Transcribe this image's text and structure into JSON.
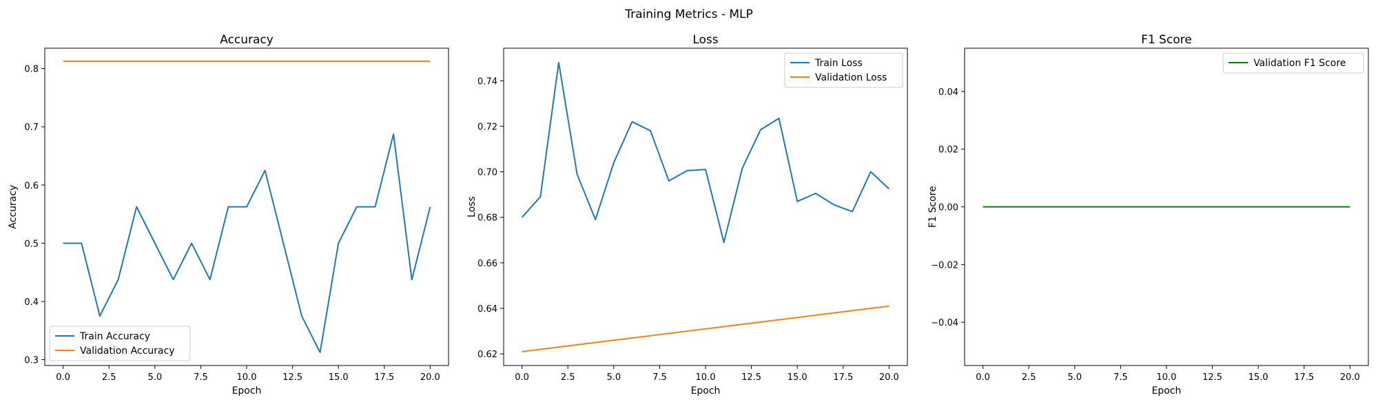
{
  "figure": {
    "title": "Training Metrics - MLP"
  },
  "chart_data": [
    {
      "type": "line",
      "title": "Accuracy",
      "xlabel": "Epoch",
      "ylabel": "Accuracy",
      "xlim": [
        -1.0,
        21.0
      ],
      "ylim": [
        0.29,
        0.835
      ],
      "xticks": [
        "0.0",
        "2.5",
        "5.0",
        "7.5",
        "10.0",
        "12.5",
        "15.0",
        "17.5",
        "20.0"
      ],
      "yticks": [
        "0.3",
        "0.4",
        "0.5",
        "0.6",
        "0.7",
        "0.8"
      ],
      "grid": false,
      "legend_position": "lower left",
      "x": [
        0,
        1,
        2,
        3,
        4,
        5,
        6,
        7,
        8,
        9,
        10,
        11,
        12,
        13,
        14,
        15,
        16,
        17,
        18,
        19,
        20
      ],
      "series": [
        {
          "name": "Train Accuracy",
          "color": "#1f77b4",
          "values": [
            0.5,
            0.5,
            0.375,
            0.4375,
            0.5625,
            0.5,
            0.4375,
            0.5,
            0.4375,
            0.5625,
            0.5625,
            0.625,
            0.5,
            0.375,
            0.3125,
            0.5,
            0.5625,
            0.5625,
            0.6875,
            0.4375,
            0.5625
          ]
        },
        {
          "name": "Validation Accuracy",
          "color": "#ff7f0e",
          "values": [
            0.8125,
            0.8125,
            0.8125,
            0.8125,
            0.8125,
            0.8125,
            0.8125,
            0.8125,
            0.8125,
            0.8125,
            0.8125,
            0.8125,
            0.8125,
            0.8125,
            0.8125,
            0.8125,
            0.8125,
            0.8125,
            0.8125,
            0.8125,
            0.8125
          ]
        }
      ]
    },
    {
      "type": "line",
      "title": "Loss",
      "xlabel": "Epoch",
      "ylabel": "Loss",
      "xlim": [
        -1.0,
        21.0
      ],
      "ylim": [
        0.6149,
        0.7543
      ],
      "xticks": [
        "0.0",
        "2.5",
        "5.0",
        "7.5",
        "10.0",
        "12.5",
        "15.0",
        "17.5",
        "20.0"
      ],
      "yticks": [
        "0.62",
        "0.64",
        "0.66",
        "0.68",
        "0.70",
        "0.72",
        "0.74"
      ],
      "grid": false,
      "legend_position": "upper right",
      "x": [
        0,
        1,
        2,
        3,
        4,
        5,
        6,
        7,
        8,
        9,
        10,
        11,
        12,
        13,
        14,
        15,
        16,
        17,
        18,
        19,
        20
      ],
      "series": [
        {
          "name": "Train Loss",
          "color": "#1f77b4",
          "values": [
            0.68,
            0.689,
            0.748,
            0.699,
            0.679,
            0.704,
            0.722,
            0.718,
            0.696,
            0.7005,
            0.701,
            0.669,
            0.7015,
            0.7185,
            0.7235,
            0.687,
            0.6905,
            0.6855,
            0.6825,
            0.7,
            0.6925
          ]
        },
        {
          "name": "Validation Loss",
          "color": "#ff7f0e",
          "values": [
            0.621,
            0.622,
            0.623,
            0.624,
            0.625,
            0.626,
            0.627,
            0.628,
            0.629,
            0.63,
            0.631,
            0.632,
            0.633,
            0.634,
            0.635,
            0.636,
            0.637,
            0.638,
            0.639,
            0.64,
            0.641
          ]
        }
      ]
    },
    {
      "type": "line",
      "title": "F1 Score",
      "xlabel": "Epoch",
      "ylabel": "F1 Score",
      "xlim": [
        -1.0,
        21.0
      ],
      "ylim": [
        -0.055,
        0.055
      ],
      "xticks": [
        "0.0",
        "2.5",
        "5.0",
        "7.5",
        "10.0",
        "12.5",
        "15.0",
        "17.5",
        "20.0"
      ],
      "yticks": [
        "−0.04",
        "−0.02",
        "0.00",
        "0.02",
        "0.04"
      ],
      "grid": false,
      "legend_position": "upper right",
      "x": [
        0,
        1,
        2,
        3,
        4,
        5,
        6,
        7,
        8,
        9,
        10,
        11,
        12,
        13,
        14,
        15,
        16,
        17,
        18,
        19,
        20
      ],
      "series": [
        {
          "name": "Validation F1 Score",
          "color": "#008000",
          "values": [
            0,
            0,
            0,
            0,
            0,
            0,
            0,
            0,
            0,
            0,
            0,
            0,
            0,
            0,
            0,
            0,
            0,
            0,
            0,
            0,
            0
          ]
        }
      ]
    }
  ]
}
